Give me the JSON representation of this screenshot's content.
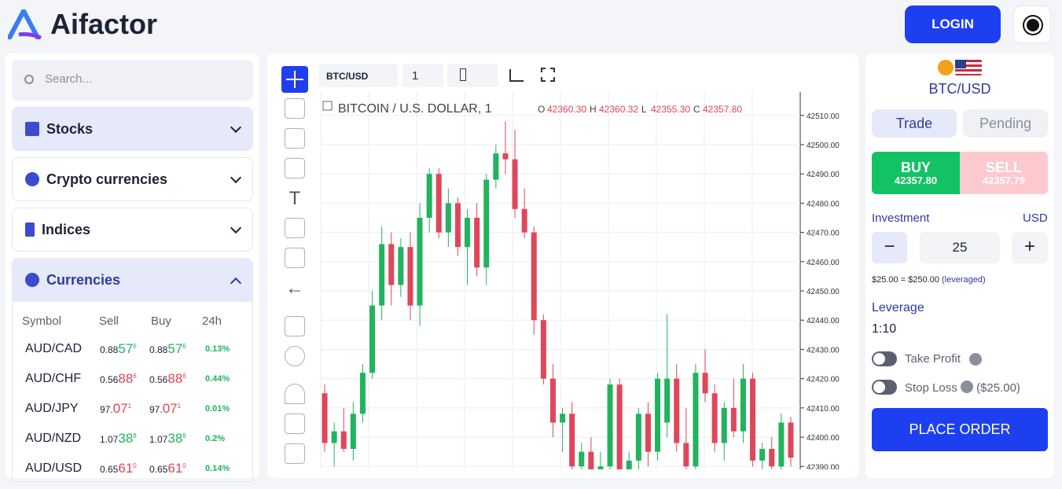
{
  "header": {
    "logo": "Aifactor",
    "login": "LOGIN"
  },
  "sidebar": {
    "search": "Search...",
    "sections": [
      "Stocks",
      "Crypto currencies",
      "Indices",
      "Currencies"
    ],
    "table": {
      "columns": [
        "Symbol",
        "Sell",
        "Buy",
        "24h"
      ],
      "rows": [
        {
          "symbol": "AUD/CAD",
          "color": "#22b35e",
          "sell": [
            "0.88",
            "57",
            "6"
          ],
          "buy": [
            "0.88",
            "57",
            "6"
          ],
          "change": "0.13%"
        },
        {
          "symbol": "AUD/CHF",
          "color": "#e0465a",
          "sell": [
            "0.56",
            "88",
            "6"
          ],
          "buy": [
            "0.56",
            "88",
            "6"
          ],
          "change": "0.44%"
        },
        {
          "symbol": "AUD/JPY",
          "color": "#e0465a",
          "sell": [
            "97.",
            "07",
            "1"
          ],
          "buy": [
            "97.",
            "07",
            "1"
          ],
          "change": "0.01%"
        },
        {
          "symbol": "AUD/NZD",
          "color": "#22b35e",
          "sell": [
            "1.07",
            "38",
            "8"
          ],
          "buy": [
            "1.07",
            "38",
            "8"
          ],
          "change": "0.2%"
        },
        {
          "symbol": "AUD/USD",
          "color": "#e0465a",
          "sell": [
            "0.65",
            "61",
            "0"
          ],
          "buy": [
            "0.65",
            "61",
            "0"
          ],
          "change": "0.14%"
        }
      ]
    }
  },
  "toolbar": {
    "symbol": "BTC/USD",
    "interval": "1"
  },
  "legend": {
    "title": "BITCOIN / U.S. DOLLAR, 1",
    "ohlc": [
      "O",
      "42360.30",
      "H",
      "42360.32",
      "L",
      "42355.30",
      "C",
      "42357.80"
    ]
  },
  "chart_data": {
    "type": "candlestick",
    "up_color": "#22b35e",
    "down_color": "#e0465a",
    "grid": true,
    "ylim": [
      42389,
      42518
    ],
    "yticks": [
      {
        "value": 42510,
        "label": "42510.00"
      },
      {
        "value": 42500,
        "label": "42500.00"
      },
      {
        "value": 42490,
        "label": "42490.00"
      },
      {
        "value": 42480,
        "label": "42480.00"
      },
      {
        "value": 42470,
        "label": "42470.00"
      },
      {
        "value": 42460,
        "label": "42460.00"
      },
      {
        "value": 42450,
        "label": "42450.00"
      },
      {
        "value": 42440,
        "label": "42440.00"
      },
      {
        "value": 42430,
        "label": "42430.00"
      },
      {
        "value": 42420,
        "label": "42420.00"
      },
      {
        "value": 42410,
        "label": "42410.00"
      },
      {
        "value": 42400,
        "label": "42400.00"
      },
      {
        "value": 42390,
        "label": "42390.00"
      }
    ],
    "open": [
      42415,
      42398,
      42402,
      42396,
      42408,
      42422,
      42445,
      42466,
      42452,
      42465,
      42445,
      42475,
      42490,
      42470,
      42480,
      42465,
      42475,
      42458,
      42488,
      42497,
      42495,
      42478,
      42470,
      42440,
      42420,
      42405,
      42408,
      42390,
      42395,
      42385,
      42390,
      42418,
      42388,
      42392,
      42408,
      42395,
      42405,
      42420,
      42398,
      42390,
      42422,
      42415,
      42398,
      42410,
      42402,
      42420,
      42392,
      42396,
      42390,
      42405
    ],
    "high": [
      42418,
      42405,
      42410,
      42412,
      42425,
      42450,
      42472,
      42470,
      42468,
      42470,
      42480,
      42492,
      42492,
      42485,
      42482,
      42478,
      42480,
      42490,
      42500,
      42508,
      42505,
      42485,
      42472,
      42442,
      42425,
      42410,
      42412,
      42398,
      42400,
      42395,
      42420,
      42420,
      42395,
      42410,
      42412,
      42422,
      42442,
      42425,
      42410,
      42425,
      42430,
      42418,
      42412,
      42420,
      42425,
      42422,
      42398,
      42400,
      42408,
      42407
    ],
    "low": [
      42395,
      42390,
      42395,
      42392,
      42405,
      42420,
      42440,
      42445,
      42448,
      42440,
      42438,
      42470,
      42468,
      42465,
      42462,
      42452,
      42455,
      42452,
      42485,
      42490,
      42475,
      42468,
      42435,
      42418,
      42400,
      42395,
      42385,
      42380,
      42380,
      42375,
      42385,
      42385,
      42380,
      42388,
      42390,
      42392,
      42400,
      42395,
      42385,
      42388,
      42412,
      42395,
      42392,
      42400,
      42398,
      42390,
      42385,
      42388,
      42385,
      42390
    ],
    "close": [
      42398,
      42402,
      42396,
      42408,
      42422,
      42445,
      42466,
      42452,
      42465,
      42445,
      42475,
      42490,
      42470,
      42480,
      42465,
      42475,
      42458,
      42488,
      42497,
      42495,
      42478,
      42470,
      42440,
      42420,
      42405,
      42408,
      42390,
      42395,
      42385,
      42390,
      42418,
      42388,
      42392,
      42408,
      42395,
      42420,
      42420,
      42398,
      42390,
      42422,
      42415,
      42398,
      42410,
      42402,
      42420,
      42392,
      42396,
      42390,
      42405,
      42393
    ]
  },
  "trade": {
    "symbol": "BTC/USD",
    "tabs": [
      "Trade",
      "Pending"
    ],
    "buy": {
      "label": "BUY",
      "price": "42357.80"
    },
    "sell": {
      "label": "SELL",
      "price": "42357.79"
    },
    "investment": {
      "label": "Investment",
      "currency": "USD",
      "amount": "25",
      "summary": "$25.00 = $250.00",
      "note": "(leveraged)"
    },
    "leverage": {
      "label": "Leverage",
      "value": "1:10"
    },
    "take_profit": "Take Profit",
    "stop_loss": {
      "label": "Stop Loss",
      "amount": "($25.00)"
    },
    "place_order": "PLACE ORDER"
  }
}
